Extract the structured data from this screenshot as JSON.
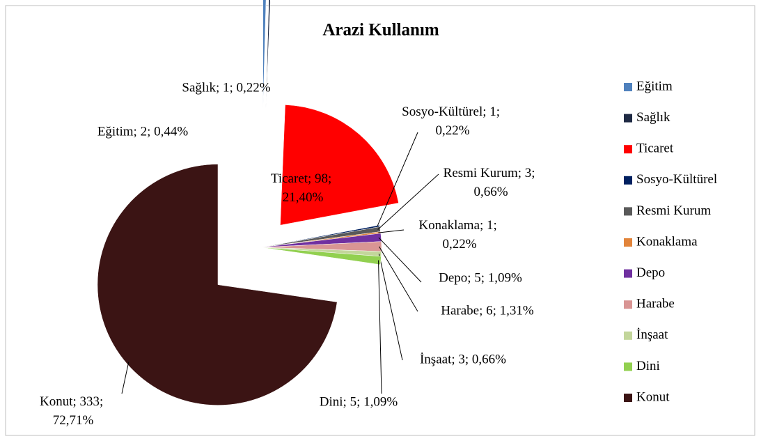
{
  "chart_data": {
    "type": "pie",
    "title": "Arazi Kullanım",
    "categories": [
      "Eğitim",
      "Sağlık",
      "Ticaret",
      "Sosyo-Kültürel",
      "Resmi Kurum",
      "Konaklama",
      "Depo",
      "Harabe",
      "İnşaat",
      "Dini",
      "Konut"
    ],
    "values": [
      2,
      1,
      98,
      1,
      3,
      1,
      5,
      6,
      3,
      5,
      333
    ],
    "value_labels": [
      "Eğitim; 2; 0,44%",
      "Sağlık; 1; 0,22%",
      "Ticaret; 98; 21,40%",
      "Sosyo-Kültürel; 1; 0,22%",
      "Resmi Kurum; 3; 0,66%",
      "Konaklama; 1; 0,22%",
      "Depo; 5; 1,09%",
      "Harabe; 6; 1,31%",
      "İnşaat; 3; 0,66%",
      "Dini; 5; 1,09%",
      "Konut; 333; 72,71%"
    ],
    "colors": [
      "#4f81bd",
      "#1f2a44",
      "#ff0000",
      "#002060",
      "#595959",
      "#e2843a",
      "#7030a0",
      "#d99594",
      "#c3d69b",
      "#92d050",
      "#3b1414"
    ],
    "legend": "right"
  }
}
